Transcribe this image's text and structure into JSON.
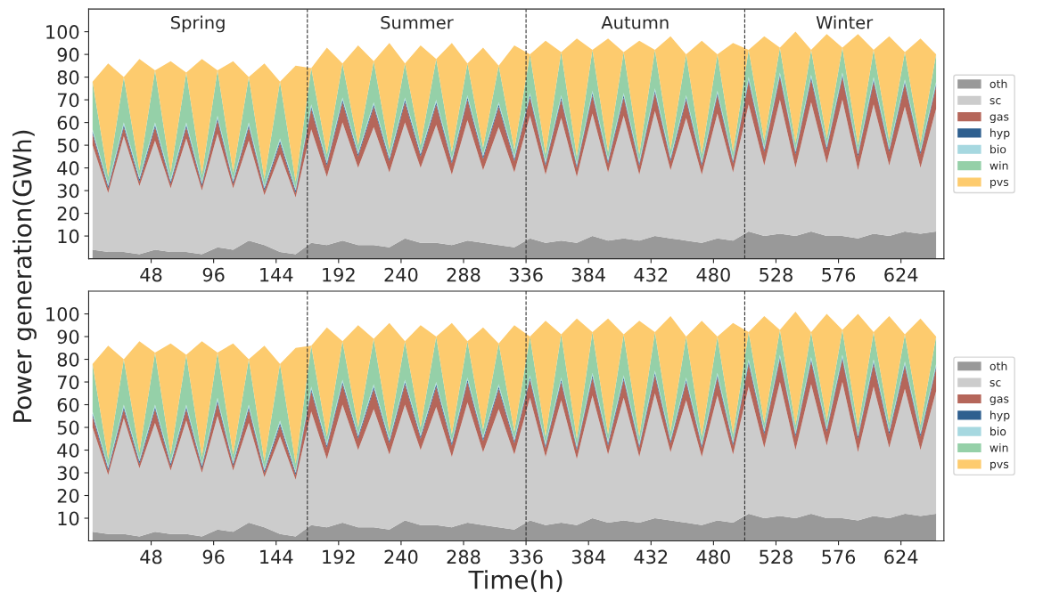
{
  "chart_data": [
    {
      "type": "area",
      "stacked": true,
      "ylabel": "Power generation(GWh)",
      "legend": "right",
      "grid": false,
      "x": [
        3,
        15,
        27,
        39,
        51,
        63,
        75,
        87,
        99,
        111,
        123,
        135,
        147,
        159,
        171,
        183,
        195,
        207,
        219,
        231,
        243,
        255,
        267,
        279,
        291,
        303,
        315,
        327,
        339,
        351,
        363,
        375,
        387,
        399,
        411,
        423,
        435,
        447,
        459,
        471,
        483,
        495,
        507,
        519,
        531,
        543,
        555,
        567,
        579,
        591,
        603,
        615,
        627,
        639,
        651
      ],
      "xlim": [
        0,
        657
      ],
      "xticks": [
        48,
        96,
        144,
        192,
        240,
        288,
        336,
        384,
        432,
        480,
        528,
        576,
        624
      ],
      "ylim": [
        0,
        110
      ],
      "yticks": [
        10,
        20,
        30,
        40,
        50,
        60,
        70,
        80,
        90,
        100
      ],
      "ref_lines": [
        {
          "axis": "x",
          "value": 168,
          "color": "#333333",
          "line_style": "dashed"
        },
        {
          "axis": "x",
          "value": 336,
          "color": "#333333",
          "line_style": "dashed"
        },
        {
          "axis": "x",
          "value": 504,
          "color": "#333333",
          "line_style": "dashed"
        }
      ],
      "annotations": [
        "Spring",
        "Summer",
        "Autumn",
        "Winter"
      ],
      "series": [
        {
          "name": "oth",
          "color": "#999999",
          "values": [
            4,
            3,
            3,
            2,
            4,
            3,
            3,
            2,
            5,
            4,
            8,
            6,
            3,
            2,
            7,
            6,
            8,
            6,
            6,
            5,
            9,
            7,
            7,
            6,
            8,
            7,
            6,
            5,
            9,
            7,
            8,
            7,
            10,
            8,
            9,
            8,
            10,
            9,
            8,
            7,
            9,
            8,
            12,
            10,
            11,
            10,
            12,
            10,
            10,
            9,
            11,
            10,
            12,
            11,
            12
          ]
        },
        {
          "name": "sc",
          "color": "#cccccc",
          "values": [
            46,
            26,
            51,
            30,
            48,
            28,
            50,
            28,
            50,
            27,
            44,
            22,
            43,
            25,
            50,
            30,
            52,
            34,
            52,
            33,
            51,
            33,
            52,
            31,
            53,
            32,
            52,
            33,
            54,
            30,
            54,
            29,
            54,
            30,
            54,
            29,
            55,
            30,
            54,
            30,
            55,
            30,
            56,
            31,
            59,
            30,
            57,
            32,
            60,
            30,
            57,
            31,
            55,
            29,
            54
          ]
        },
        {
          "name": "gas",
          "color": "#b5665a",
          "values": [
            5,
            2,
            4,
            2,
            6,
            2,
            5,
            2,
            6,
            2,
            6,
            2,
            5,
            2,
            9,
            5,
            9,
            5,
            9,
            5,
            9,
            5,
            9,
            5,
            9,
            5,
            9,
            5,
            8,
            4,
            8,
            4,
            8,
            4,
            8,
            4,
            8,
            4,
            8,
            4,
            8,
            4,
            10,
            6,
            10,
            6,
            10,
            6,
            10,
            6,
            10,
            6,
            10,
            6,
            10
          ]
        },
        {
          "name": "hyp",
          "color": "#2e5f8f",
          "values": [
            1,
            1,
            1,
            1,
            1,
            1,
            1,
            1,
            1,
            1,
            1,
            1,
            1,
            1,
            1,
            1,
            1,
            1,
            1,
            1,
            1,
            1,
            1,
            1,
            1,
            1,
            1,
            1,
            1,
            1,
            1,
            1,
            1,
            1,
            1,
            1,
            1,
            1,
            1,
            1,
            1,
            1,
            1,
            1,
            1,
            1,
            1,
            1,
            1,
            1,
            1,
            1,
            1,
            1,
            1
          ]
        },
        {
          "name": "bio",
          "color": "#a6d8e0",
          "values": [
            1,
            1,
            1,
            1,
            1,
            1,
            1,
            1,
            1,
            1,
            1,
            1,
            1,
            1,
            1,
            1,
            1,
            1,
            1,
            1,
            1,
            1,
            1,
            1,
            1,
            1,
            1,
            1,
            1,
            1,
            1,
            1,
            1,
            1,
            1,
            1,
            1,
            1,
            1,
            1,
            1,
            1,
            1,
            1,
            1,
            1,
            1,
            1,
            1,
            1,
            1,
            1,
            1,
            1,
            1
          ]
        },
        {
          "name": "win",
          "color": "#95d0a8",
          "values": [
            21,
            3,
            20,
            3,
            23,
            3,
            22,
            3,
            20,
            3,
            20,
            3,
            25,
            3,
            16,
            3,
            15,
            3,
            18,
            3,
            15,
            3,
            18,
            3,
            14,
            3,
            16,
            3,
            17,
            3,
            19,
            3,
            18,
            3,
            18,
            3,
            17,
            3,
            18,
            3,
            16,
            3,
            12,
            3,
            11,
            3,
            11,
            3,
            11,
            3,
            12,
            3,
            12,
            3,
            12
          ]
        },
        {
          "name": "pvs",
          "color": "#fdcb6e",
          "values": [
            0,
            50,
            0,
            49,
            0,
            49,
            0,
            51,
            0,
            49,
            0,
            51,
            0,
            51,
            0,
            47,
            0,
            44,
            0,
            47,
            0,
            44,
            0,
            48,
            0,
            44,
            0,
            46,
            0,
            50,
            0,
            52,
            0,
            50,
            0,
            50,
            0,
            50,
            0,
            50,
            0,
            48,
            0,
            46,
            0,
            49,
            0,
            46,
            0,
            49,
            0,
            46,
            0,
            46,
            0
          ]
        }
      ]
    },
    {
      "type": "area",
      "stacked": true,
      "xlabel": "Time(h)",
      "legend": "right",
      "grid": false,
      "x": [
        3,
        15,
        27,
        39,
        51,
        63,
        75,
        87,
        99,
        111,
        123,
        135,
        147,
        159,
        171,
        183,
        195,
        207,
        219,
        231,
        243,
        255,
        267,
        279,
        291,
        303,
        315,
        327,
        339,
        351,
        363,
        375,
        387,
        399,
        411,
        423,
        435,
        447,
        459,
        471,
        483,
        495,
        507,
        519,
        531,
        543,
        555,
        567,
        579,
        591,
        603,
        615,
        627,
        639,
        651
      ],
      "xlim": [
        0,
        657
      ],
      "xticks": [
        48,
        96,
        144,
        192,
        240,
        288,
        336,
        384,
        432,
        480,
        528,
        576,
        624
      ],
      "ylim": [
        0,
        110
      ],
      "yticks": [
        10,
        20,
        30,
        40,
        50,
        60,
        70,
        80,
        90,
        100
      ],
      "ref_lines": [
        {
          "axis": "x",
          "value": 168,
          "color": "#333333",
          "line_style": "dashed"
        },
        {
          "axis": "x",
          "value": 336,
          "color": "#333333",
          "line_style": "dashed"
        },
        {
          "axis": "x",
          "value": 504,
          "color": "#333333",
          "line_style": "dashed"
        }
      ],
      "series": [
        {
          "name": "oth",
          "color": "#999999",
          "values": [
            4,
            3,
            3,
            2,
            4,
            3,
            3,
            2,
            5,
            4,
            8,
            6,
            3,
            2,
            7,
            6,
            8,
            6,
            6,
            5,
            9,
            7,
            7,
            6,
            8,
            7,
            6,
            5,
            9,
            7,
            8,
            7,
            10,
            8,
            9,
            8,
            10,
            9,
            8,
            7,
            9,
            8,
            12,
            10,
            11,
            10,
            12,
            10,
            10,
            9,
            11,
            10,
            12,
            11,
            12
          ]
        },
        {
          "name": "sc",
          "color": "#cccccc",
          "values": [
            46,
            26,
            51,
            30,
            48,
            28,
            50,
            28,
            50,
            27,
            44,
            22,
            43,
            25,
            50,
            30,
            52,
            34,
            52,
            33,
            51,
            33,
            52,
            31,
            53,
            32,
            52,
            33,
            54,
            30,
            54,
            29,
            54,
            30,
            54,
            29,
            55,
            30,
            54,
            30,
            55,
            30,
            56,
            31,
            59,
            30,
            57,
            32,
            60,
            30,
            57,
            31,
            55,
            29,
            54
          ]
        },
        {
          "name": "gas",
          "color": "#b5665a",
          "values": [
            5,
            2,
            4,
            2,
            6,
            2,
            5,
            2,
            6,
            2,
            6,
            2,
            5,
            2,
            9,
            5,
            9,
            5,
            9,
            5,
            9,
            5,
            9,
            5,
            9,
            5,
            9,
            5,
            8,
            4,
            8,
            4,
            8,
            4,
            8,
            4,
            8,
            4,
            8,
            4,
            8,
            4,
            10,
            6,
            10,
            6,
            10,
            6,
            10,
            6,
            10,
            6,
            10,
            6,
            10
          ]
        },
        {
          "name": "hyp",
          "color": "#2e5f8f",
          "values": [
            1,
            1,
            1,
            1,
            1,
            1,
            1,
            1,
            1,
            1,
            1,
            1,
            1,
            1,
            1,
            1,
            1,
            1,
            1,
            1,
            1,
            1,
            1,
            1,
            1,
            1,
            1,
            1,
            1,
            1,
            1,
            1,
            1,
            1,
            1,
            1,
            1,
            1,
            1,
            1,
            1,
            1,
            1,
            1,
            1,
            1,
            1,
            1,
            1,
            1,
            1,
            1,
            1,
            1,
            1
          ]
        },
        {
          "name": "bio",
          "color": "#a6d8e0",
          "values": [
            1,
            1,
            1,
            1,
            1,
            1,
            1,
            1,
            1,
            1,
            1,
            1,
            1,
            1,
            1,
            1,
            1,
            1,
            1,
            1,
            1,
            1,
            1,
            1,
            1,
            1,
            1,
            1,
            1,
            1,
            1,
            1,
            1,
            1,
            1,
            1,
            1,
            1,
            1,
            1,
            1,
            1,
            1,
            1,
            1,
            1,
            1,
            1,
            1,
            1,
            1,
            1,
            1,
            1,
            1
          ]
        },
        {
          "name": "win",
          "color": "#95d0a8",
          "values": [
            21,
            3,
            20,
            3,
            23,
            3,
            22,
            3,
            20,
            3,
            20,
            3,
            25,
            3,
            18,
            3,
            17,
            3,
            20,
            3,
            17,
            3,
            20,
            3,
            16,
            3,
            18,
            3,
            17,
            3,
            19,
            3,
            18,
            3,
            18,
            3,
            17,
            3,
            18,
            3,
            16,
            3,
            12,
            3,
            11,
            3,
            11,
            3,
            11,
            3,
            12,
            3,
            12,
            3,
            12
          ]
        },
        {
          "name": "pvs",
          "color": "#fdcb6e",
          "values": [
            0,
            50,
            0,
            49,
            0,
            49,
            0,
            51,
            0,
            49,
            0,
            51,
            0,
            51,
            0,
            48,
            0,
            45,
            0,
            48,
            0,
            45,
            0,
            49,
            0,
            45,
            0,
            47,
            0,
            51,
            0,
            53,
            0,
            51,
            0,
            51,
            0,
            51,
            0,
            51,
            0,
            49,
            0,
            47,
            0,
            50,
            0,
            47,
            0,
            50,
            0,
            47,
            0,
            47,
            0
          ]
        }
      ]
    }
  ]
}
